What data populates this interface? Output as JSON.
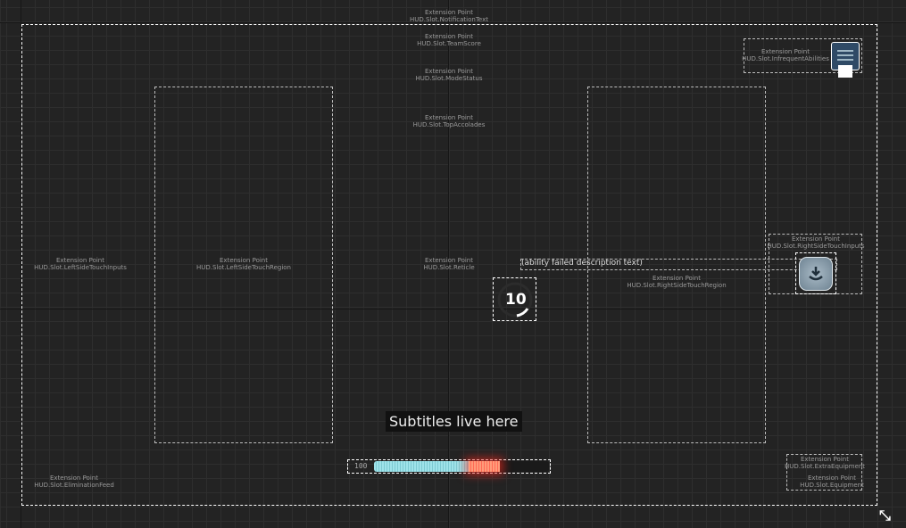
{
  "slots": [
    {
      "id": "notification",
      "title": "Extension Point",
      "name": "HUD.Slot.NotificationText"
    },
    {
      "id": "team-score",
      "title": "Extension Point",
      "name": "HUD.Slot.TeamScore"
    },
    {
      "id": "mode-status",
      "title": "Extension Point",
      "name": "HUD.Slot.ModeStatus"
    },
    {
      "id": "top-accolades",
      "title": "Extension Point",
      "name": "HUD.Slot.TopAccolades"
    },
    {
      "id": "infrequent",
      "title": "Extension Point",
      "name": "HUD.Slot.InfrequentAbilities"
    },
    {
      "id": "left-touch-inputs",
      "title": "Extension Point",
      "name": "HUD.Slot.LeftSideTouchInputs"
    },
    {
      "id": "left-touch-region",
      "title": "Extension Point",
      "name": "HUD.Slot.LeftSideTouchRegion"
    },
    {
      "id": "reticle",
      "title": "Extension Point",
      "name": "HUD.Slot.Reticle"
    },
    {
      "id": "right-touch-region",
      "title": "Extension Point",
      "name": "HUD.Slot.RightSideTouchRegion"
    },
    {
      "id": "right-touch-inputs",
      "title": "Extension Point",
      "name": "HUD.Slot.RightSideTouchInputs"
    },
    {
      "id": "elimination-feed",
      "title": "Extension Point",
      "name": "HUD.Slot.EliminationFeed"
    },
    {
      "id": "extra-equipment",
      "title": "Extension Point",
      "name": "HUD.Slot.ExtraEquipment"
    },
    {
      "id": "equipment",
      "title": "Extension Point",
      "name": "HUD.Slot.Equipment"
    }
  ],
  "ability_failed_text": "(ability failed description text)",
  "reticle_ammo": "10",
  "subtitles": "Subtitles live here",
  "health": {
    "value_label": "100",
    "fill_fraction": 0.72,
    "danger_fraction": 0.18
  },
  "colors": {
    "health": "#9fe3ea",
    "danger": "#ff5a4a",
    "button": "#2f4a66"
  }
}
